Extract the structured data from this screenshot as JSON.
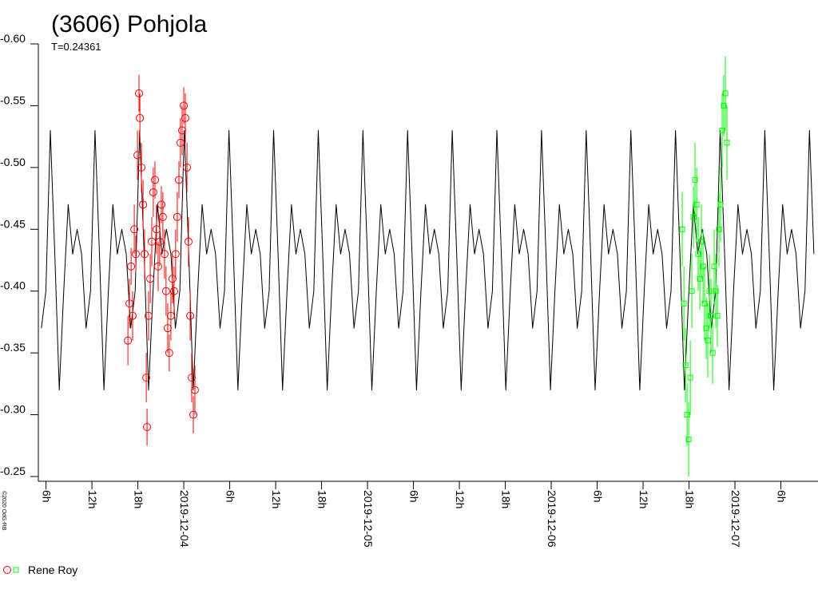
{
  "chart_data": {
    "type": "line",
    "title": "(3606) Pohjola",
    "subtitle": "T=0.24361",
    "credit": "©2020 OdG-RB",
    "y_inverted": true,
    "ylim": [
      -0.6,
      -0.25
    ],
    "yticks": [
      {
        "value": -0.6,
        "label": "-0.60"
      },
      -0.55,
      {
        "value": -0.5,
        "label": "-0.50"
      },
      -0.45,
      {
        "value": -0.4,
        "label": "-0.40"
      },
      -0.35,
      {
        "value": -0.3,
        "label": "-0.30"
      },
      -0.25
    ],
    "xlim": [
      "2019-12-03T05:00",
      "2019-12-07T10:51"
    ],
    "xticks": [
      {
        "value": "2019-12-03T06:00",
        "label": "6h"
      },
      {
        "value": "2019-12-03T12:00",
        "label": "12h"
      },
      {
        "value": "2019-12-03T18:00",
        "label": "18h"
      },
      {
        "value": "2019-12-04T00:00",
        "label": "2019-12-04"
      },
      {
        "value": "2019-12-04T06:00",
        "label": "6h"
      },
      {
        "value": "2019-12-04T12:00",
        "label": "12h"
      },
      {
        "value": "2019-12-04T18:00",
        "label": "18h"
      },
      {
        "value": "2019-12-05T00:00",
        "label": "2019-12-05"
      },
      {
        "value": "2019-12-05T06:00",
        "label": "6h"
      },
      {
        "value": "2019-12-05T12:00",
        "label": "12h"
      },
      {
        "value": "2019-12-05T18:00",
        "label": "18h"
      },
      {
        "value": "2019-12-06T00:00",
        "label": "2019-12-06"
      },
      {
        "value": "2019-12-06T06:00",
        "label": "6h"
      },
      {
        "value": "2019-12-06T12:00",
        "label": "12h"
      },
      {
        "value": "2019-12-06T18:00",
        "label": "18h"
      },
      {
        "value": "2019-12-07T00:00",
        "label": "2019-12-07"
      },
      {
        "value": "2019-12-07T06:00",
        "label": "6h"
      }
    ],
    "series": [
      {
        "color": "#000000",
        "x": [
          "2019-12-03T05:24",
          "2019-12-03T05:59",
          "2019-12-03T06:34",
          "2019-12-03T07:09",
          "2019-12-03T07:44",
          "2019-12-03T08:19",
          "2019-12-03T08:54",
          "2019-12-03T09:29",
          "2019-12-03T10:04",
          "2019-12-03T10:39",
          "2019-12-03T11:14",
          "2019-12-03T11:49",
          "2019-12-03T12:24",
          "2019-12-03T12:59",
          "2019-12-03T13:34",
          "2019-12-03T14:09",
          "2019-12-03T14:44",
          "2019-12-03T15:19",
          "2019-12-03T15:54",
          "2019-12-03T16:29",
          "2019-12-03T17:04",
          "2019-12-03T17:39",
          "2019-12-03T18:14",
          "2019-12-03T18:49",
          "2019-12-03T19:24",
          "2019-12-03T19:59",
          "2019-12-03T20:34",
          "2019-12-03T21:09",
          "2019-12-03T21:44",
          "2019-12-03T22:19",
          "2019-12-03T22:54",
          "2019-12-03T23:29",
          "2019-12-04T00:04",
          "2019-12-04T00:39",
          "2019-12-04T01:14",
          "2019-12-04T01:49",
          "2019-12-04T02:24",
          "2019-12-04T02:59",
          "2019-12-04T03:34",
          "2019-12-04T04:09",
          "2019-12-04T04:44",
          "2019-12-04T05:19",
          "2019-12-04T05:54",
          "2019-12-04T06:29",
          "2019-12-04T07:04",
          "2019-12-04T07:39",
          "2019-12-04T08:14",
          "2019-12-04T08:49",
          "2019-12-04T09:24",
          "2019-12-04T09:59",
          "2019-12-04T10:34",
          "2019-12-04T11:09",
          "2019-12-04T11:44",
          "2019-12-04T12:19",
          "2019-12-04T12:54",
          "2019-12-04T13:29",
          "2019-12-04T14:04",
          "2019-12-04T14:39",
          "2019-12-04T15:14",
          "2019-12-04T15:49",
          "2019-12-04T16:24",
          "2019-12-04T16:59",
          "2019-12-04T17:34",
          "2019-12-04T18:09",
          "2019-12-04T18:44",
          "2019-12-04T19:19",
          "2019-12-04T19:54",
          "2019-12-04T20:29",
          "2019-12-04T21:04",
          "2019-12-04T21:39",
          "2019-12-04T22:14",
          "2019-12-04T22:49",
          "2019-12-04T23:24",
          "2019-12-04T23:59",
          "2019-12-05T00:34",
          "2019-12-05T01:09",
          "2019-12-05T01:44",
          "2019-12-05T02:19",
          "2019-12-05T02:54",
          "2019-12-05T03:29",
          "2019-12-05T04:04",
          "2019-12-05T04:39",
          "2019-12-05T05:14",
          "2019-12-05T05:49",
          "2019-12-05T06:24",
          "2019-12-05T06:59",
          "2019-12-05T07:34",
          "2019-12-05T08:09",
          "2019-12-05T08:44",
          "2019-12-05T09:19",
          "2019-12-05T09:54",
          "2019-12-05T10:29",
          "2019-12-05T11:04",
          "2019-12-05T11:39",
          "2019-12-05T12:14",
          "2019-12-05T12:49",
          "2019-12-05T13:24",
          "2019-12-05T13:59",
          "2019-12-05T14:34",
          "2019-12-05T15:09",
          "2019-12-05T15:44",
          "2019-12-05T16:19",
          "2019-12-05T16:54",
          "2019-12-05T17:29",
          "2019-12-05T18:04",
          "2019-12-05T18:39",
          "2019-12-05T19:14",
          "2019-12-05T19:49",
          "2019-12-05T20:24",
          "2019-12-05T20:59",
          "2019-12-05T21:34",
          "2019-12-05T22:09",
          "2019-12-05T22:44",
          "2019-12-05T23:19",
          "2019-12-05T23:54",
          "2019-12-06T00:29",
          "2019-12-06T01:04",
          "2019-12-06T01:39",
          "2019-12-06T02:14",
          "2019-12-06T02:49",
          "2019-12-06T03:24",
          "2019-12-06T03:59",
          "2019-12-06T04:34",
          "2019-12-06T05:09",
          "2019-12-06T05:44",
          "2019-12-06T06:19",
          "2019-12-06T06:54",
          "2019-12-06T07:29",
          "2019-12-06T08:04",
          "2019-12-06T08:39",
          "2019-12-06T09:14",
          "2019-12-06T09:49",
          "2019-12-06T10:24",
          "2019-12-06T10:59",
          "2019-12-06T11:34",
          "2019-12-06T12:09",
          "2019-12-06T12:44",
          "2019-12-06T13:19",
          "2019-12-06T13:54",
          "2019-12-06T14:29",
          "2019-12-06T15:04",
          "2019-12-06T15:39",
          "2019-12-06T16:14",
          "2019-12-06T16:49",
          "2019-12-06T17:24",
          "2019-12-06T17:59",
          "2019-12-06T18:34",
          "2019-12-06T19:09",
          "2019-12-06T19:44",
          "2019-12-06T20:19",
          "2019-12-06T20:54",
          "2019-12-06T21:29",
          "2019-12-06T22:04",
          "2019-12-06T22:39",
          "2019-12-06T23:14",
          "2019-12-06T23:49",
          "2019-12-07T00:24",
          "2019-12-07T00:59",
          "2019-12-07T01:34",
          "2019-12-07T02:09",
          "2019-12-07T02:44",
          "2019-12-07T03:19",
          "2019-12-07T03:54",
          "2019-12-07T04:29",
          "2019-12-07T05:04",
          "2019-12-07T05:39",
          "2019-12-07T06:14",
          "2019-12-07T06:49",
          "2019-12-07T07:24",
          "2019-12-07T07:59",
          "2019-12-07T08:34",
          "2019-12-07T09:09",
          "2019-12-07T09:44",
          "2019-12-07T10:19"
        ],
        "values": [
          -0.37,
          -0.4,
          -0.53,
          -0.43,
          -0.32,
          -0.4,
          -0.47,
          -0.43,
          -0.45,
          -0.43,
          -0.37,
          -0.4,
          -0.53,
          -0.43,
          -0.32,
          -0.4,
          -0.47,
          -0.43,
          -0.45,
          -0.43,
          -0.37,
          -0.4,
          -0.53,
          -0.43,
          -0.32,
          -0.4,
          -0.47,
          -0.43,
          -0.45,
          -0.43,
          -0.37,
          -0.4,
          -0.53,
          -0.43,
          -0.32,
          -0.4,
          -0.47,
          -0.43,
          -0.45,
          -0.43,
          -0.37,
          -0.4,
          -0.53,
          -0.43,
          -0.32,
          -0.4,
          -0.47,
          -0.43,
          -0.45,
          -0.43,
          -0.37,
          -0.4,
          -0.53,
          -0.43,
          -0.32,
          -0.4,
          -0.47,
          -0.43,
          -0.45,
          -0.43,
          -0.37,
          -0.4,
          -0.53,
          -0.43,
          -0.32,
          -0.4,
          -0.47,
          -0.43,
          -0.45,
          -0.43,
          -0.37,
          -0.4,
          -0.53,
          -0.43,
          -0.32,
          -0.4,
          -0.47,
          -0.43,
          -0.45,
          -0.43,
          -0.37,
          -0.4,
          -0.53,
          -0.43,
          -0.32,
          -0.4,
          -0.47,
          -0.43,
          -0.45,
          -0.43,
          -0.37,
          -0.4,
          -0.53,
          -0.43,
          -0.32,
          -0.4,
          -0.47,
          -0.43,
          -0.45,
          -0.43,
          -0.37,
          -0.4,
          -0.53,
          -0.43,
          -0.32,
          -0.4,
          -0.47,
          -0.43,
          -0.45,
          -0.43,
          -0.37,
          -0.4,
          -0.53,
          -0.43,
          -0.32,
          -0.4,
          -0.47,
          -0.43,
          -0.45,
          -0.43,
          -0.37,
          -0.4,
          -0.53,
          -0.43,
          -0.32,
          -0.4,
          -0.47,
          -0.43,
          -0.45,
          -0.43,
          -0.37,
          -0.4,
          -0.53,
          -0.43,
          -0.32,
          -0.4,
          -0.47,
          -0.43,
          -0.45,
          -0.43,
          -0.37,
          -0.4,
          -0.53,
          -0.43,
          -0.32,
          -0.4,
          -0.47,
          -0.43,
          -0.45,
          -0.43,
          -0.37,
          -0.4,
          -0.53,
          -0.43,
          -0.32,
          -0.4,
          -0.47,
          -0.43,
          -0.45,
          -0.43,
          -0.37,
          -0.4,
          -0.53,
          -0.43,
          -0.32,
          -0.4,
          -0.47,
          -0.43,
          -0.45,
          -0.43,
          -0.37,
          -0.4,
          -0.53,
          -0.43
        ]
      },
      {
        "name": "Rene Roy",
        "color": "#ff0000",
        "marker": "circle",
        "x": [
          "2019-12-03T16:42",
          "2019-12-03T16:54",
          "2019-12-03T17:07",
          "2019-12-03T17:19",
          "2019-12-03T17:32",
          "2019-12-03T17:44",
          "2019-12-03T17:57",
          "2019-12-03T18:09",
          "2019-12-03T18:16",
          "2019-12-03T18:28",
          "2019-12-03T18:41",
          "2019-12-03T18:53",
          "2019-12-03T19:06",
          "2019-12-03T19:12",
          "2019-12-03T19:24",
          "2019-12-03T19:37",
          "2019-12-03T19:49",
          "2019-12-03T20:01",
          "2019-12-03T20:14",
          "2019-12-03T20:26",
          "2019-12-03T20:39",
          "2019-12-03T20:51",
          "2019-12-03T21:04",
          "2019-12-03T21:16",
          "2019-12-03T21:29",
          "2019-12-03T21:41",
          "2019-12-03T21:54",
          "2019-12-03T22:06",
          "2019-12-03T22:19",
          "2019-12-03T22:31",
          "2019-12-03T22:44",
          "2019-12-03T22:56",
          "2019-12-03T23:09",
          "2019-12-03T23:22",
          "2019-12-03T23:34",
          "2019-12-03T23:47",
          "2019-12-04T00:00",
          "2019-12-04T00:12",
          "2019-12-04T00:25",
          "2019-12-04T00:37",
          "2019-12-04T00:50",
          "2019-12-04T01:02",
          "2019-12-04T01:15",
          "2019-12-04T01:27"
        ],
        "values": [
          -0.36,
          -0.39,
          -0.42,
          -0.38,
          -0.45,
          -0.43,
          -0.51,
          -0.56,
          -0.54,
          -0.5,
          -0.47,
          -0.43,
          -0.33,
          -0.29,
          -0.38,
          -0.41,
          -0.44,
          -0.48,
          -0.49,
          -0.45,
          -0.42,
          -0.44,
          -0.47,
          -0.46,
          -0.43,
          -0.4,
          -0.37,
          -0.35,
          -0.38,
          -0.41,
          -0.4,
          -0.43,
          -0.46,
          -0.49,
          -0.52,
          -0.53,
          -0.55,
          -0.54,
          -0.5,
          -0.44,
          -0.38,
          -0.33,
          -0.3,
          -0.32
        ],
        "errors": [
          0.02,
          0.02,
          0.015,
          0.02,
          0.02,
          0.015,
          0.02,
          0.015,
          0.02,
          0.02,
          0.02,
          0.02,
          0.02,
          0.015,
          0.02,
          0.02,
          0.02,
          0.02,
          0.015,
          0.02,
          0.02,
          0.02,
          0.015,
          0.02,
          0.02,
          0.02,
          0.02,
          0.015,
          0.02,
          0.02,
          0.02,
          0.02,
          0.02,
          0.015,
          0.02,
          0.02,
          0.015,
          0.02,
          0.02,
          0.02,
          0.02,
          0.02,
          0.015,
          0.02
        ]
      },
      {
        "color": "#00ff00",
        "marker": "square",
        "x": [
          "2019-12-06T17:07",
          "2019-12-06T17:20",
          "2019-12-06T17:32",
          "2019-12-06T17:45",
          "2019-12-06T17:57",
          "2019-12-06T18:10",
          "2019-12-06T18:22",
          "2019-12-06T18:35",
          "2019-12-06T18:47",
          "2019-12-06T19:00",
          "2019-12-06T19:12",
          "2019-12-06T19:25",
          "2019-12-06T19:37",
          "2019-12-06T19:50",
          "2019-12-06T20:02",
          "2019-12-06T20:15",
          "2019-12-06T20:27",
          "2019-12-06T20:40",
          "2019-12-06T20:52",
          "2019-12-06T21:05",
          "2019-12-06T21:17",
          "2019-12-06T21:30",
          "2019-12-06T21:42",
          "2019-12-06T21:55",
          "2019-12-06T22:07",
          "2019-12-06T22:20",
          "2019-12-06T22:32",
          "2019-12-06T22:45",
          "2019-12-06T22:57"
        ],
        "values": [
          -0.45,
          -0.39,
          -0.34,
          -0.3,
          -0.28,
          -0.33,
          -0.4,
          -0.46,
          -0.49,
          -0.47,
          -0.43,
          -0.41,
          -0.44,
          -0.42,
          -0.39,
          -0.37,
          -0.36,
          -0.4,
          -0.38,
          -0.35,
          -0.42,
          -0.4,
          -0.38,
          -0.45,
          -0.47,
          -0.53,
          -0.55,
          -0.56,
          -0.52
        ],
        "errors": [
          0.03,
          0.03,
          0.03,
          0.025,
          0.03,
          0.03,
          0.03,
          0.025,
          0.03,
          0.03,
          0.03,
          0.025,
          0.03,
          0.03,
          0.03,
          0.025,
          0.03,
          0.03,
          0.03,
          0.025,
          0.03,
          0.03,
          0.025,
          0.03,
          0.03,
          0.03,
          0.025,
          0.03,
          0.03
        ]
      }
    ]
  }
}
